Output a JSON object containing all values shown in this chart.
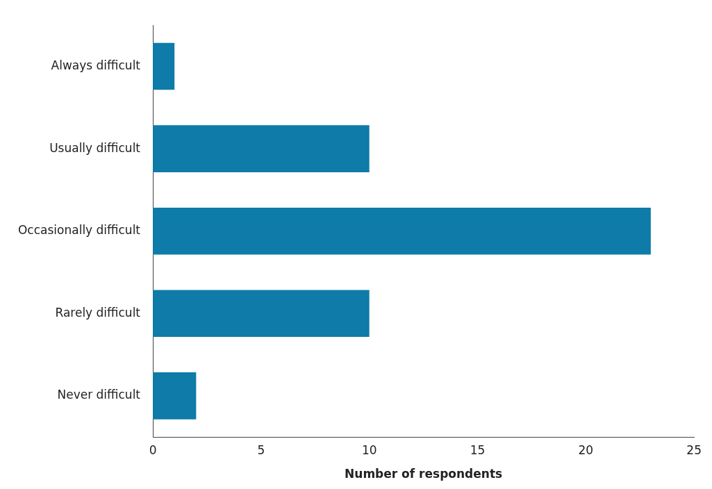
{
  "chart_data": {
    "type": "bar",
    "orientation": "horizontal",
    "categories": [
      "Always difficult",
      "Usually difficult",
      "Occasionally difficult",
      "Rarely difficult",
      "Never difficult"
    ],
    "values": [
      1,
      10,
      23,
      10,
      2
    ],
    "color": "#0e7ba8",
    "xlabel": "Number of respondents",
    "xlim": [
      0,
      25
    ],
    "xticks": [
      0,
      5,
      10,
      15,
      20,
      25
    ],
    "grid": false,
    "legend": false
  }
}
